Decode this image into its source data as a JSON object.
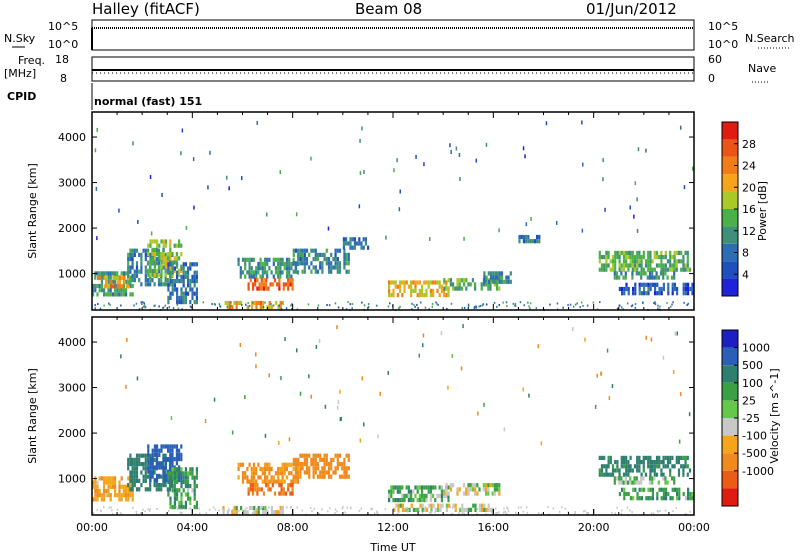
{
  "header": {
    "station": "Halley (fitACF)",
    "beam": "Beam 08",
    "date": "01/Jun/2012"
  },
  "strip_panels": {
    "nsky": {
      "left_label": "N.Sky",
      "left_ticks": [
        "10^5",
        "10^0"
      ],
      "right_label": "N.Search",
      "right_ticks": [
        "10^5",
        "10^0"
      ]
    },
    "freq": {
      "left_label": "Freq.",
      "left_unit": "[MHz]",
      "left_ticks": [
        "18",
        "8"
      ],
      "right_label": "Nave",
      "right_ticks": [
        "60",
        "0"
      ]
    },
    "cpid": {
      "label": "CPID",
      "value": "normal (fast) 151"
    }
  },
  "colors": {
    "power": [
      "#1e22d8",
      "#1e4fbf",
      "#2d6db5",
      "#3f8f7a",
      "#4bb04a",
      "#a9c928",
      "#f4a51a",
      "#f27d16",
      "#ec5417",
      "#e01b12"
    ],
    "velocity": [
      "#1c1fc4",
      "#2a5fb8",
      "#2f7f6f",
      "#3aa043",
      "#66c84a",
      "#c8c8c8",
      "#f4a51a",
      "#f08a1c",
      "#ec5c17",
      "#e01b12"
    ]
  },
  "chart_data": [
    {
      "type": "heatmap",
      "name": "power",
      "xlabel": "",
      "ylabel": "Slant Range [km]",
      "xlim": [
        0,
        24
      ],
      "ylim": [
        200,
        4550
      ],
      "yticks": [
        1000,
        2000,
        3000,
        4000
      ],
      "colorbar": {
        "label": "Power [dB]",
        "range": [
          0,
          32
        ],
        "ticks": [
          "4",
          "8",
          "12",
          "16",
          "20",
          "24",
          "28"
        ]
      },
      "regions": [
        {
          "t": [
            0.0,
            1.6
          ],
          "r": [
            500,
            1050
          ],
          "v": 12
        },
        {
          "t": [
            0.2,
            1.5
          ],
          "r": [
            700,
            950
          ],
          "v": 22
        },
        {
          "t": [
            1.4,
            3.2
          ],
          "r": [
            800,
            1550
          ],
          "v": 10
        },
        {
          "t": [
            2.2,
            3.6
          ],
          "r": [
            1000,
            1750
          ],
          "v": 16
        },
        {
          "t": [
            3.0,
            4.2
          ],
          "r": [
            400,
            1250
          ],
          "v": 8
        },
        {
          "t": [
            5.8,
            8.2
          ],
          "r": [
            900,
            1350
          ],
          "v": 12
        },
        {
          "t": [
            6.2,
            8.0
          ],
          "r": [
            650,
            900
          ],
          "v": 26
        },
        {
          "t": [
            5.2,
            7.6
          ],
          "r": [
            250,
            400
          ],
          "v": 22
        },
        {
          "t": [
            8.0,
            10.2
          ],
          "r": [
            1050,
            1550
          ],
          "v": 10
        },
        {
          "t": [
            10.0,
            11.0
          ],
          "r": [
            1550,
            1800
          ],
          "v": 8
        },
        {
          "t": [
            11.8,
            14.2
          ],
          "r": [
            550,
            850
          ],
          "v": 20
        },
        {
          "t": [
            14.0,
            16.2
          ],
          "r": [
            650,
            900
          ],
          "v": 14
        },
        {
          "t": [
            15.6,
            16.8
          ],
          "r": [
            850,
            1050
          ],
          "v": 10
        },
        {
          "t": [
            17.0,
            17.8
          ],
          "r": [
            1700,
            1850
          ],
          "v": 8
        },
        {
          "t": [
            20.2,
            23.8
          ],
          "r": [
            1100,
            1500
          ],
          "v": 14
        },
        {
          "t": [
            20.8,
            23.2
          ],
          "r": [
            900,
            1050
          ],
          "v": 12
        },
        {
          "t": [
            21.0,
            24.0
          ],
          "r": [
            550,
            800
          ],
          "v": 6
        }
      ]
    },
    {
      "type": "heatmap",
      "name": "velocity",
      "xlabel": "Time UT",
      "ylabel": "Slant Range [km]",
      "xlim": [
        0,
        24
      ],
      "xticks": [
        "00:00",
        "04:00",
        "08:00",
        "12:00",
        "16:00",
        "20:00",
        "00:00"
      ],
      "ylim": [
        200,
        4550
      ],
      "yticks": [
        1000,
        2000,
        3000,
        4000
      ],
      "colorbar": {
        "label": "Velocity [m s^-1]",
        "ticks": [
          "1000",
          "500",
          "100",
          "25",
          "-25",
          "-100",
          "-500",
          "-1000"
        ]
      },
      "regions": [
        {
          "t": [
            0.0,
            1.6
          ],
          "r": [
            500,
            1050
          ],
          "v": -80
        },
        {
          "t": [
            1.4,
            3.2
          ],
          "r": [
            800,
            1550
          ],
          "v": 200
        },
        {
          "t": [
            2.2,
            3.6
          ],
          "r": [
            1000,
            1750
          ],
          "v": 600
        },
        {
          "t": [
            3.0,
            4.2
          ],
          "r": [
            400,
            1250
          ],
          "v": 80
        },
        {
          "t": [
            5.8,
            8.2
          ],
          "r": [
            900,
            1350
          ],
          "v": -120
        },
        {
          "t": [
            6.2,
            8.0
          ],
          "r": [
            650,
            900
          ],
          "v": -300
        },
        {
          "t": [
            5.2,
            7.6
          ],
          "r": [
            250,
            400
          ],
          "v": 0
        },
        {
          "t": [
            8.0,
            10.2
          ],
          "r": [
            1050,
            1550
          ],
          "v": -200
        },
        {
          "t": [
            11.8,
            14.2
          ],
          "r": [
            550,
            850
          ],
          "v": 60
        },
        {
          "t": [
            14.0,
            16.2
          ],
          "r": [
            650,
            900
          ],
          "v": 0
        },
        {
          "t": [
            12.0,
            16.0
          ],
          "r": [
            300,
            450
          ],
          "v": 0
        },
        {
          "t": [
            20.2,
            23.8
          ],
          "r": [
            1100,
            1500
          ],
          "v": 150
        },
        {
          "t": [
            20.8,
            23.2
          ],
          "r": [
            900,
            1050
          ],
          "v": 40
        },
        {
          "t": [
            21.0,
            24.0
          ],
          "r": [
            550,
            800
          ],
          "v": 80
        }
      ]
    }
  ]
}
